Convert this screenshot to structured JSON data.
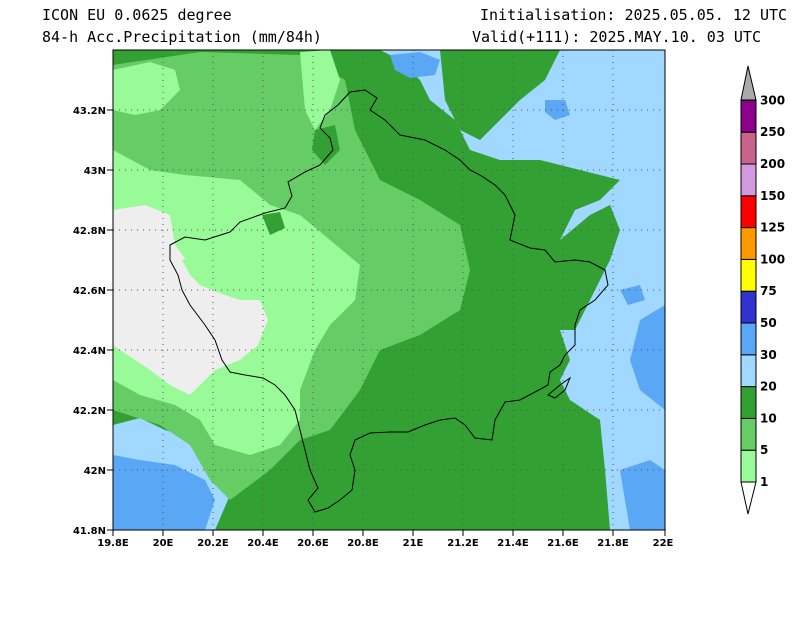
{
  "header": {
    "model": "ICON EU 0.0625 degree",
    "field": "84-h Acc.Precipitation (mm/84h)",
    "init": "Initialisation: 2025.05.05. 12 UTC",
    "valid": "Valid(+111): 2025.MAY.10. 03 UTC"
  },
  "map": {
    "lon_ticks": [
      "19.8E",
      "20E",
      "20.2E",
      "20.4E",
      "20.6E",
      "20.8E",
      "21E",
      "21.2E",
      "21.4E",
      "21.6E",
      "21.8E",
      "22E"
    ],
    "lat_ticks": [
      "43.2N",
      "43N",
      "42.8N",
      "42.6N",
      "42.4N",
      "42.2N",
      "42N",
      "41.8N"
    ]
  },
  "colorbar": {
    "levels": [
      "1",
      "5",
      "10",
      "20",
      "30",
      "50",
      "75",
      "100",
      "125",
      "150",
      "200",
      "250",
      "300"
    ],
    "colors": [
      "#98fb98",
      "#66cd66",
      "#33a033",
      "#a0d8ff",
      "#5aa8f5",
      "#3232d0",
      "#ffff00",
      "#ff9900",
      "#ff0000",
      "#d29be0",
      "#c8648c",
      "#8c008c",
      "#aaaaaa"
    ]
  },
  "colors": {
    "no_precip": "#eeeeee",
    "light_green": "#98fb98",
    "mid_green": "#66cd66",
    "dark_green": "#33a033",
    "light_blue": "#a0d8ff",
    "mid_blue": "#5aa8f5"
  }
}
